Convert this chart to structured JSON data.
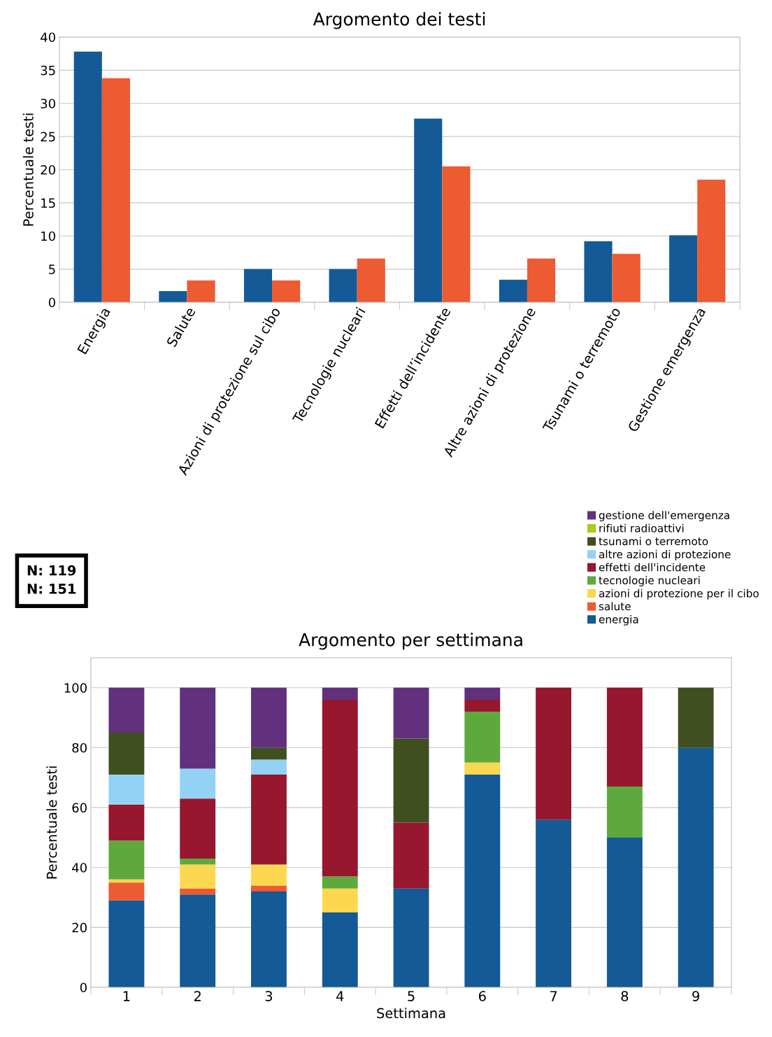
{
  "chart_data": [
    {
      "type": "bar",
      "title": "Argomento dei testi",
      "ylabel": "Percentuale testi",
      "categories": [
        "Energia",
        "Salute",
        "Azioni di protezione sul cibo",
        "Tecnologie nucleari",
        "Effetti dell’incidente",
        "Altre azioni di protezione",
        "Tsunami o terremoto",
        "Gestione emergenza"
      ],
      "series": [
        {
          "color": "#135a96",
          "values": [
            37.8,
            1.7,
            5.0,
            5.0,
            27.7,
            3.4,
            9.2,
            10.1
          ]
        },
        {
          "color": "#ec5b32",
          "values": [
            33.8,
            3.3,
            3.3,
            6.6,
            20.5,
            6.6,
            7.3,
            18.5
          ]
        }
      ],
      "ylim": [
        0,
        40
      ],
      "yticks": [
        0,
        5,
        10,
        15,
        20,
        25,
        30,
        35,
        40
      ],
      "grid": "y",
      "annotations": [
        "N: 119",
        "N: 151"
      ]
    },
    {
      "type": "bar",
      "stacked": true,
      "title": "Argomento per settimana",
      "xlabel": "Settimana",
      "ylabel": "Percentuale testi",
      "categories": [
        "1",
        "2",
        "3",
        "4",
        "5",
        "6",
        "7",
        "8",
        "9"
      ],
      "series": [
        {
          "name": "energia",
          "color": "#135a96",
          "values": [
            29,
            31,
            32,
            25,
            33,
            71,
            56,
            50,
            80
          ]
        },
        {
          "name": "salute",
          "color": "#ec5b32",
          "values": [
            6,
            2,
            2,
            0,
            0,
            0,
            0,
            0,
            0
          ]
        },
        {
          "name": "azioni di protezione per il cibo",
          "color": "#fdd74f",
          "values": [
            1,
            8,
            7,
            8,
            0,
            4,
            0,
            0,
            0
          ]
        },
        {
          "name": "tecnologie nucleari",
          "color": "#5ea93e",
          "values": [
            13,
            2,
            0,
            4,
            0,
            17,
            0,
            17,
            0
          ]
        },
        {
          "name": "effetti dell'incidente",
          "color": "#96172e",
          "values": [
            12,
            20,
            30,
            59,
            22,
            4,
            44,
            33,
            0
          ]
        },
        {
          "name": "altre azioni di protezione",
          "color": "#93d2f4",
          "values": [
            10,
            10,
            5,
            0,
            0,
            0,
            0,
            0,
            0
          ]
        },
        {
          "name": "tsunami o terremoto",
          "color": "#3f4f1f",
          "values": [
            14,
            0,
            4,
            0,
            28,
            0,
            0,
            0,
            20
          ]
        },
        {
          "name": "rifiuti radioattivi",
          "color": "#b2c81a",
          "values": [
            0,
            0,
            0,
            0,
            0,
            0,
            0,
            0,
            0
          ]
        },
        {
          "name": "gestione dell'emergenza",
          "color": "#61317e",
          "values": [
            15,
            27,
            20,
            4,
            17,
            4,
            0,
            0,
            0
          ]
        }
      ],
      "ylim": [
        0,
        110
      ],
      "yticks": [
        0,
        20,
        40,
        60,
        80,
        100
      ],
      "grid": "y",
      "legend": "top right"
    }
  ]
}
